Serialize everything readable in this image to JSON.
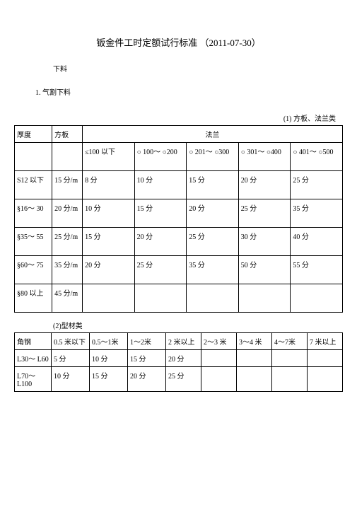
{
  "title": "钣金件工时定额试行标准  （2011-07-30）",
  "section1": "下料",
  "subsection1": "1. 气割下料",
  "table1_caption": "(1) 方板、法兰类",
  "table1": {
    "h_thickness": "厚度",
    "h_fangban": "方板",
    "h_falan": "法兰",
    "h_c1": "≤100 以下",
    "h_c2": "○ 100～ ○200",
    "h_c3": "○ 201～ ○300",
    "h_c4": "○ 301～ ○400",
    "h_c5": "○ 401～ ○500",
    "rows": [
      {
        "th": "S12 以下",
        "fb": "15 分/m",
        "c1": "8 分",
        "c2": "10 分",
        "c3": "15 分",
        "c4": "20 分",
        "c5": "25 分"
      },
      {
        "th": "§16～ 30",
        "fb": "20 分/m",
        "c1": "10 分",
        "c2": "15 分",
        "c3": "20 分",
        "c4": "25 分",
        "c5": "35 分"
      },
      {
        "th": "§35～ 55",
        "fb": "25 分/m",
        "c1": "15 分",
        "c2": "20 分",
        "c3": "25 分",
        "c4": "30 分",
        "c5": "40 分"
      },
      {
        "th": "§60～ 75",
        "fb": "35 分/m",
        "c1": "20 分",
        "c2": "25 分",
        "c3": "35 分",
        "c4": "50 分",
        "c5": "55 分"
      },
      {
        "th": "§80 以上",
        "fb": "45 分/m",
        "c1": "",
        "c2": "",
        "c3": "",
        "c4": "",
        "c5": ""
      }
    ]
  },
  "table2_caption": "(2)型材类",
  "table2": {
    "h_jiaogang": "角钢",
    "h_c1": "0.5 米以下",
    "h_c2": "0.5～1米",
    "h_c3": "1～2米",
    "h_c4": "2 米以上",
    "h_c5": "2～3 米",
    "h_c6": "3～4 米",
    "h_c7": "4～7米",
    "h_c8": "7 米以上",
    "rows": [
      {
        "jg": "L30～ L60",
        "c1": "5 分",
        "c2": "10 分",
        "c3": "15 分",
        "c4": "20 分",
        "c5": "",
        "c6": "",
        "c7": "",
        "c8": ""
      },
      {
        "jg": "L70～ L100",
        "c1": "10 分",
        "c2": "15 分",
        "c3": "20 分",
        "c4": "25 分",
        "c5": "",
        "c6": "",
        "c7": "",
        "c8": ""
      }
    ]
  }
}
